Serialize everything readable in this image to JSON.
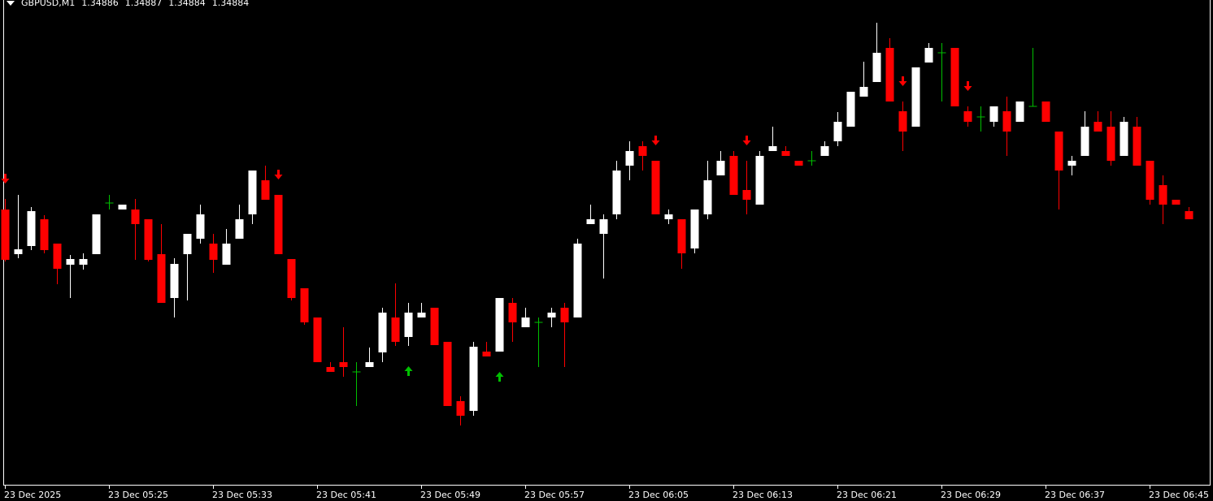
{
  "chart_data": {
    "type": "candlestick",
    "title": "GBPUSD,M1",
    "categories": [
      "23 Dec 2025",
      null,
      null,
      null,
      null,
      null,
      null,
      null,
      "23 Dec 05:25",
      null,
      null,
      null,
      null,
      null,
      null,
      null,
      "23 Dec 05:33",
      null,
      null,
      null,
      null,
      null,
      null,
      null,
      "23 Dec 05:41",
      null,
      null,
      null,
      null,
      null,
      null,
      null,
      "23 Dec 05:49",
      null,
      null,
      null,
      null,
      null,
      null,
      null,
      "23 Dec 05:57",
      null,
      null,
      null,
      null,
      null,
      null,
      null,
      "23 Dec 06:05",
      null,
      null,
      null,
      null,
      null,
      null,
      null,
      "23 Dec 06:13",
      null,
      null,
      null,
      null,
      null,
      null,
      null,
      "23 Dec 06:21",
      null,
      null,
      null,
      null,
      null,
      null,
      null,
      "23 Dec 06:29",
      null,
      null,
      null,
      null,
      null,
      null,
      null,
      "23 Dec 06:37",
      null,
      null,
      null,
      null,
      null,
      null,
      null,
      "23 Dec 06:45",
      null,
      null,
      null
    ],
    "open": [
      1.348864,
      1.348754,
      1.348774,
      1.34884,
      1.34878,
      1.348728,
      1.348728,
      1.348754,
      1.34888,
      1.348864,
      1.348864,
      1.34884,
      1.348754,
      1.348646,
      1.348754,
      1.348792,
      1.34878,
      1.348728,
      1.348792,
      1.348852,
      1.348936,
      1.3489,
      1.348742,
      1.34867,
      1.348598,
      1.348476,
      1.348488,
      1.348464,
      1.348476,
      1.348512,
      1.348598,
      1.34855,
      1.348598,
      1.348622,
      1.348538,
      1.348392,
      1.348368,
      1.348514,
      1.348514,
      1.348634,
      1.348574,
      1.348586,
      1.348598,
      1.348622,
      1.348598,
      1.348828,
      1.348804,
      1.348852,
      1.348972,
      1.34902,
      1.348984,
      1.34884,
      1.34884,
      1.348768,
      1.348852,
      1.348948,
      1.348996,
      1.348912,
      1.348876,
      1.349008,
      1.349008,
      1.348984,
      1.348984,
      1.348996,
      1.349032,
      1.349068,
      1.349142,
      1.349178,
      1.349262,
      1.349106,
      1.349068,
      1.349226,
      1.34925,
      1.349262,
      1.349106,
      1.349092,
      1.34908,
      1.349106,
      1.34908,
      1.349118,
      1.34913,
      1.349056,
      1.348972,
      1.348996,
      1.34908,
      1.349068,
      1.348996,
      1.349068,
      1.348984,
      1.348924,
      1.348888,
      1.34886
    ],
    "high": [
      1.34889,
      1.3489,
      1.34887,
      1.34885,
      1.34878,
      1.348752,
      1.348756,
      1.348852,
      1.3489,
      1.348876,
      1.34889,
      1.34884,
      1.348828,
      1.348744,
      1.348804,
      1.348876,
      1.348804,
      1.348816,
      1.348876,
      1.34896,
      1.348972,
      1.3489,
      1.348742,
      1.34867,
      1.348598,
      1.348488,
      1.348574,
      1.348488,
      1.348524,
      1.348622,
      1.348682,
      1.348634,
      1.348634,
      1.348622,
      1.348538,
      1.348404,
      1.348538,
      1.348538,
      1.348646,
      1.348646,
      1.348622,
      1.348598,
      1.348622,
      1.348634,
      1.348792,
      1.348876,
      1.348852,
      1.348984,
      1.349032,
      1.349032,
      1.348984,
      1.348864,
      1.34884,
      1.348864,
      1.348984,
      1.349008,
      1.349008,
      1.348984,
      1.349008,
      1.349068,
      1.34902,
      1.348984,
      1.349008,
      1.349032,
      1.349104,
      1.349154,
      1.349228,
      1.349324,
      1.349286,
      1.34913,
      1.349214,
      1.349274,
      1.349274,
      1.349262,
      1.349118,
      1.349118,
      1.349118,
      1.349142,
      1.34913,
      1.349262,
      1.34913,
      1.349056,
      1.348996,
      1.349106,
      1.349106,
      1.349106,
      1.349092,
      1.349092,
      1.348984,
      1.348948,
      1.348888,
      1.34887
    ],
    "low": [
      1.348736,
      1.348744,
      1.348764,
      1.348756,
      1.34868,
      1.348646,
      1.348716,
      1.348754,
      1.348864,
      1.348864,
      1.34874,
      1.348736,
      1.348634,
      1.348598,
      1.34864,
      1.34878,
      1.348708,
      1.348728,
      1.348792,
      1.348828,
      1.348888,
      1.348754,
      1.34864,
      1.34858,
      1.348488,
      1.348464,
      1.348452,
      1.34838,
      1.348476,
      1.348488,
      1.348528,
      1.348528,
      1.348598,
      1.34853,
      1.34838,
      1.348332,
      1.348356,
      1.348502,
      1.348514,
      1.348538,
      1.348574,
      1.348476,
      1.348574,
      1.348476,
      1.348598,
      1.348828,
      1.348694,
      1.34884,
      1.348936,
      1.34896,
      1.348852,
      1.348828,
      1.348718,
      1.348756,
      1.34884,
      1.348948,
      1.3489,
      1.348852,
      1.348876,
      1.349008,
      1.348996,
      1.348972,
      1.348972,
      1.348996,
      1.34902,
      1.349068,
      1.349142,
      1.349178,
      1.34913,
      1.349008,
      1.349068,
      1.349226,
      1.34913,
      1.349118,
      1.349068,
      1.349056,
      1.349068,
      1.348996,
      1.34908,
      1.349118,
      1.34908,
      1.348864,
      1.348948,
      1.348996,
      1.349056,
      1.348972,
      1.348996,
      1.348972,
      1.348876,
      1.348828,
      1.348876,
      1.34884
    ],
    "close": [
      1.34874,
      1.348766,
      1.34886,
      1.348764,
      1.348718,
      1.348742,
      1.348742,
      1.348852,
      1.34888,
      1.348876,
      1.348828,
      1.34874,
      1.348634,
      1.34873,
      1.348804,
      1.348852,
      1.34874,
      1.34878,
      1.34884,
      1.34896,
      1.348888,
      1.348754,
      1.348646,
      1.348586,
      1.348488,
      1.348464,
      1.348476,
      1.348464,
      1.348488,
      1.34861,
      1.348538,
      1.34861,
      1.34861,
      1.34853,
      1.34838,
      1.348356,
      1.348526,
      1.348502,
      1.348646,
      1.348586,
      1.348598,
      1.348586,
      1.34861,
      1.348586,
      1.34878,
      1.34884,
      1.34884,
      1.34896,
      1.349008,
      1.348996,
      1.348852,
      1.348852,
      1.348756,
      1.348864,
      1.348936,
      1.348984,
      1.3489,
      1.348888,
      1.348996,
      1.34902,
      1.348996,
      1.348972,
      1.348984,
      1.34902,
      1.34908,
      1.349154,
      1.349166,
      1.34925,
      1.34913,
      1.349056,
      1.349214,
      1.349262,
      1.34925,
      1.349118,
      1.34908,
      1.349092,
      1.349118,
      1.349056,
      1.34913,
      1.349118,
      1.34908,
      1.34896,
      1.348984,
      1.349068,
      1.349056,
      1.348984,
      1.34908,
      1.348972,
      1.348888,
      1.348876,
      1.348876,
      1.34884
    ],
    "ylim": [
      1.348186,
      1.34938
    ],
    "grid": false,
    "colors": {
      "up": "#ffffff",
      "down": "#ff0000",
      "doji": "#00c000"
    },
    "sell_signals": [
      0,
      21,
      50,
      57,
      69,
      74
    ],
    "buy_signals": [
      31,
      38
    ]
  }
}
